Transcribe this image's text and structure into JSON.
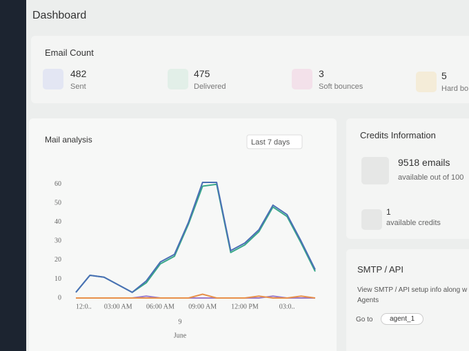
{
  "header": {
    "title": "Dashboard"
  },
  "email_count": {
    "title": "Email Count",
    "stats": [
      {
        "value": 482,
        "label": "Sent"
      },
      {
        "value": 475,
        "label": "Delivered"
      },
      {
        "value": 3,
        "label": "Soft bounces"
      },
      {
        "value": 5,
        "label": "Hard bo"
      }
    ]
  },
  "chart_data": {
    "type": "line",
    "title": "Mail analysis",
    "filter": "Last 7 days",
    "x": [
      0,
      1,
      2,
      3,
      4,
      5,
      6,
      7,
      8,
      9,
      10,
      11,
      12,
      13,
      14,
      15,
      16,
      17
    ],
    "xlim": [
      0,
      17
    ],
    "xticks": [
      {
        "value": 0,
        "label": "12:0.."
      },
      {
        "value": 3,
        "label": "03:00 AM"
      },
      {
        "value": 6,
        "label": "06:00 AM"
      },
      {
        "value": 9,
        "label": "09:00 AM"
      },
      {
        "value": 12,
        "label": "12:00 PM"
      },
      {
        "value": 15,
        "label": "03:0.."
      }
    ],
    "date_label": "9",
    "month_label": "June",
    "ylim": [
      0,
      65
    ],
    "yticks": [
      0,
      10,
      20,
      30,
      40,
      50,
      60
    ],
    "series": [
      {
        "color": "#4a6fb5",
        "values": [
          3,
          12,
          11,
          7,
          3,
          9,
          19,
          23,
          40,
          61,
          61,
          25,
          29,
          36,
          49,
          44,
          30,
          15
        ]
      },
      {
        "color": "#3aa88a",
        "values": [
          3,
          12,
          11,
          7,
          3,
          8,
          18,
          22,
          39,
          59,
          60,
          24,
          28,
          35,
          48,
          43,
          29,
          14
        ]
      },
      {
        "color": "#e8904a",
        "values": [
          0,
          0,
          0,
          0,
          0,
          0,
          0,
          0,
          0,
          2,
          0,
          0,
          0,
          1,
          0,
          0,
          1,
          0
        ]
      },
      {
        "color": "#9a7ac8",
        "values": [
          0,
          0,
          0,
          0,
          0,
          1,
          0,
          0,
          0,
          0,
          0,
          0,
          0,
          0,
          1,
          0,
          0,
          0
        ]
      }
    ]
  },
  "credits": {
    "title": "Credits Information",
    "emails": "9518 emails",
    "emails_note": "available out of 100",
    "credits": 1,
    "credits_note": "available credits"
  },
  "smtp": {
    "title": "SMTP / API",
    "text": "View SMTP / API setup info along w",
    "text2": "Agents",
    "goto_label": "Go to",
    "agent": "agent_1"
  }
}
